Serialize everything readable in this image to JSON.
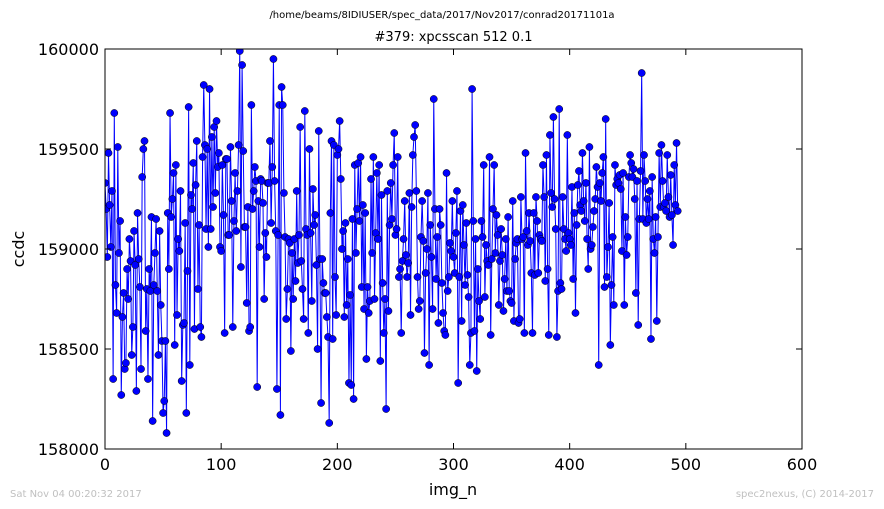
{
  "header": {
    "path": "/home/beams/8IDIUSER/spec_data/2017/Nov2017/conrad20171101a"
  },
  "footer": {
    "timestamp": "Sat Nov 04 00:20:32 2017",
    "credit": "spec2nexus, (C) 2014-2017"
  },
  "chart_data": {
    "type": "line",
    "title": "#379: xpcsscan 512 0.1",
    "xlabel": "img_n",
    "ylabel": "ccdc",
    "xlim": [
      0,
      600
    ],
    "ylim": [
      158000,
      160000
    ],
    "xticks": [
      "0",
      "100",
      "200",
      "300",
      "400",
      "500",
      "600"
    ],
    "yticks": [
      "158000",
      "158500",
      "159000",
      "159500",
      "160000"
    ],
    "grid": false,
    "markers": true,
    "series": [
      {
        "color": "#0000ff",
        "x_start": 0,
        "x_step": 1,
        "values": [
          159330,
          159200,
          158960,
          159480,
          159220,
          159010,
          159290,
          158350,
          159680,
          158820,
          158680,
          159510,
          158980,
          159140,
          158270,
          158660,
          158780,
          158400,
          158430,
          158900,
          158750,
          159050,
          158940,
          158470,
          158610,
          159090,
          158920,
          158290,
          159180,
          158950,
          158810,
          158400,
          159360,
          159500,
          159540,
          158590,
          158800,
          158350,
          158900,
          158790,
          159160,
          158140,
          158820,
          158980,
          159150,
          158790,
          158470,
          159090,
          158720,
          158540,
          158180,
          158240,
          158540,
          158080,
          159180,
          158900,
          159680,
          159160,
          159250,
          159380,
          158520,
          159420,
          158670,
          159050,
          158990,
          159290,
          158340,
          158620,
          158630,
          159130,
          158180,
          158890,
          159710,
          158420,
          159270,
          159200,
          159430,
          158600,
          159320,
          159540,
          158800,
          159120,
          158610,
          158560,
          159460,
          159820,
          159520,
          159100,
          159500,
          159010,
          159800,
          159100,
          159560,
          159210,
          159610,
          159280,
          159640,
          159410,
          159480,
          159010,
          158990,
          159420,
          159170,
          158580,
          159450,
          159450,
          159070,
          159070,
          159510,
          159240,
          158610,
          159140,
          159380,
          159090,
          159290,
          159520,
          159990,
          158910,
          159920,
          159490,
          159110,
          159110,
          158730,
          159210,
          158590,
          158610,
          159720,
          159200,
          159290,
          159410,
          159340,
          158310,
          159240,
          159010,
          159350,
          159340,
          159230,
          158750,
          159080,
          158960,
          159330,
          159330,
          159540,
          159130,
          159410,
          159950,
          159340,
          159090,
          158300,
          159070,
          159720,
          158170,
          159810,
          159720,
          159280,
          159060,
          158650,
          158800,
          159050,
          159030,
          158490,
          158980,
          158750,
          159050,
          158840,
          159290,
          158930,
          159070,
          159610,
          158940,
          158800,
          158650,
          159690,
          159100,
          159070,
          158580,
          159500,
          159080,
          158740,
          159300,
          159120,
          159170,
          158920,
          158500,
          159590,
          158950,
          158230,
          158950,
          158830,
          158780,
          158780,
          158660,
          158560,
          158130,
          159180,
          159540,
          158550,
          159520,
          158860,
          158670,
          159470,
          159500,
          159640,
          159350,
          159000,
          159090,
          158660,
          159130,
          158720,
          158950,
          158330,
          158770,
          158320,
          159150,
          158250,
          159420,
          158980,
          159200,
          159430,
          159140,
          159460,
          158810,
          159220,
          158700,
          159180,
          158450,
          158810,
          158680,
          158740,
          159350,
          158980,
          159460,
          158750,
          159080,
          159380,
          159050,
          159420,
          158440,
          159270,
          158830,
          158580,
          158750,
          158200,
          159290,
          158690,
          159120,
          159330,
          159150,
          159420,
          159580,
          159070,
          159100,
          159460,
          158860,
          158900,
          158580,
          158940,
          159050,
          159240,
          158970,
          158860,
          158930,
          159280,
          158670,
          159210,
          159470,
          159560,
          159620,
          159290,
          158860,
          158700,
          158740,
          159060,
          159240,
          159040,
          158480,
          158880,
          159000,
          159280,
          158420,
          159120,
          158960,
          158700,
          159750,
          159200,
          158850,
          159060,
          158630,
          159200,
          159120,
          158830,
          158680,
          158590,
          158570,
          159380,
          158790,
          158860,
          159030,
          158990,
          159240,
          158960,
          158880,
          159080,
          159290,
          158330,
          158860,
          159190,
          158640,
          159220,
          159020,
          158820,
          159130,
          158870,
          158760,
          158420,
          158580,
          159800,
          159140,
          158590,
          159050,
          158390,
          158900,
          158740,
          158650,
          159140,
          159060,
          159420,
          158760,
          159020,
          158940,
          158920,
          159460,
          158570,
          158950,
          159200,
          159420,
          158980,
          159170,
          159070,
          158720,
          158940,
          159100,
          158970,
          158690,
          158850,
          159050,
          158790,
          159160,
          158790,
          158740,
          158730,
          159240,
          158640,
          158950,
          159030,
          159050,
          158630,
          158650,
          159260,
          159050,
          159060,
          158580,
          159480,
          159090,
          159020,
          159180,
          159040,
          158880,
          158580,
          159180,
          158870,
          159260,
          159140,
          158880,
          159070,
          159050,
          159040,
          159420,
          159260,
          158840,
          159470,
          158900,
          158570,
          159570,
          159280,
          159210,
          159660,
          159250,
          159100,
          158560,
          158790,
          159700,
          158830,
          158800,
          159260,
          159100,
          159050,
          158990,
          159570,
          159080,
          159050,
          159020,
          159310,
          158850,
          159180,
          158680,
          159120,
          159320,
          159390,
          159220,
          159190,
          159480,
          159240,
          159140,
          159330,
          159050,
          158900,
          159510,
          159000,
          159020,
          159110,
          159190,
          159250,
          159410,
          159310,
          158420,
          159330,
          159240,
          159380,
          159460,
          158810,
          159650,
          158860,
          159010,
          159230,
          158520,
          158820,
          159060,
          158720,
          159420,
          159320,
          159350,
          159330,
          159370,
          159300,
          158990,
          159380,
          158720,
          159160,
          158970,
          159060,
          159360,
          159470,
          159430,
          159360,
          159400,
          159250,
          158780,
          159340,
          158620,
          159150,
          159390,
          159880,
          159150,
          159470,
          159340,
          159130,
          159250,
          159150,
          159290,
          158550,
          159360,
          159050,
          158980,
          159160,
          158640,
          159060,
          159480,
          159210,
          159520,
          159340,
          159210,
          159230,
          159190,
          159470,
          159260,
          159160,
          159370,
          159170,
          159020,
          159420,
          159220,
          159530,
          159190
        ]
      }
    ]
  }
}
